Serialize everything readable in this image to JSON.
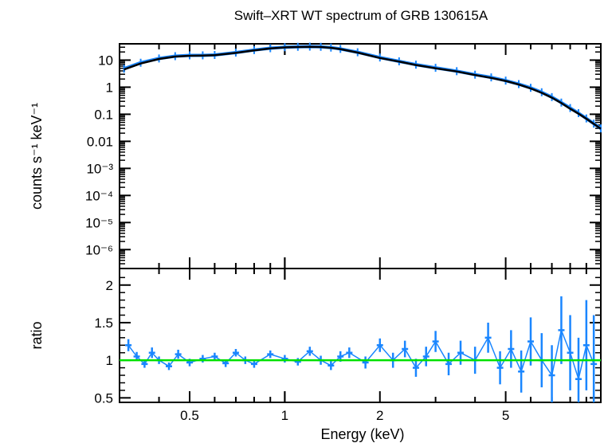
{
  "chart_data": [
    {
      "type": "scatter",
      "panel": "top",
      "title": "Swift–XRT WT spectrum of GRB 130615A",
      "ylabel": "counts s⁻¹ keV⁻¹",
      "xscale": "log",
      "yscale": "log",
      "xlim": [
        0.3,
        10
      ],
      "ylim": [
        2e-07,
        40
      ],
      "grid": false,
      "y_ticks": [
        {
          "value": 10,
          "label": "10"
        },
        {
          "value": 1,
          "label": "1"
        },
        {
          "value": 0.1,
          "label": "0.1"
        },
        {
          "value": 0.01,
          "label": "0.01"
        },
        {
          "value": 0.001,
          "label": "10⁻³"
        },
        {
          "value": 0.0001,
          "label": "10⁻⁴"
        },
        {
          "value": 1e-05,
          "label": "10⁻⁵"
        },
        {
          "value": 1e-06,
          "label": "10⁻⁶"
        }
      ],
      "series": [
        {
          "kind": "data",
          "color": "#1a86ff",
          "x": [
            0.31,
            0.35,
            0.4,
            0.45,
            0.5,
            0.55,
            0.6,
            0.7,
            0.8,
            0.9,
            1.0,
            1.1,
            1.2,
            1.3,
            1.4,
            1.5,
            1.7,
            2.0,
            2.3,
            2.6,
            3.0,
            3.5,
            4.0,
            4.5,
            5.0,
            5.5,
            6.0,
            6.5,
            7.0,
            7.5,
            8.0,
            8.5,
            9.0,
            9.5,
            10.0
          ],
          "y": [
            4.8,
            8.0,
            11.5,
            14.0,
            15.0,
            15.0,
            15.5,
            19.0,
            23.5,
            27.5,
            30.0,
            31.0,
            31.5,
            31.0,
            29.0,
            26.0,
            19.5,
            12.5,
            9.0,
            6.8,
            5.2,
            3.9,
            2.9,
            2.3,
            1.75,
            1.3,
            0.95,
            0.65,
            0.43,
            0.27,
            0.17,
            0.11,
            0.07,
            0.045,
            0.03
          ]
        },
        {
          "kind": "model",
          "color": "#000000",
          "x": [
            0.31,
            0.35,
            0.4,
            0.45,
            0.5,
            0.55,
            0.6,
            0.7,
            0.8,
            0.9,
            1.0,
            1.1,
            1.2,
            1.3,
            1.4,
            1.5,
            1.7,
            2.0,
            2.3,
            2.6,
            3.0,
            3.5,
            4.0,
            4.5,
            5.0,
            5.5,
            6.0,
            6.5,
            7.0,
            7.5,
            8.0,
            8.5,
            9.0,
            9.5,
            10.0
          ],
          "y": [
            4.5,
            7.5,
            11.0,
            13.5,
            14.5,
            14.8,
            15.2,
            18.5,
            23.0,
            27.0,
            29.5,
            30.5,
            31.0,
            30.5,
            28.5,
            25.5,
            19.0,
            12.0,
            8.8,
            6.6,
            5.0,
            3.8,
            2.8,
            2.2,
            1.7,
            1.25,
            0.9,
            0.62,
            0.41,
            0.26,
            0.16,
            0.105,
            0.068,
            0.044,
            0.029
          ]
        }
      ]
    },
    {
      "type": "scatter",
      "panel": "bottom",
      "xlabel": "Energy (keV)",
      "ylabel": "ratio",
      "xscale": "log",
      "xlim": [
        0.3,
        10
      ],
      "ylim": [
        0.44,
        2.22
      ],
      "grid": false,
      "x_ticks": [
        {
          "value": 0.5,
          "label": "0.5"
        },
        {
          "value": 1,
          "label": "1"
        },
        {
          "value": 2,
          "label": "2"
        },
        {
          "value": 5,
          "label": "5"
        }
      ],
      "y_ticks": [
        {
          "value": 2,
          "label": "2"
        },
        {
          "value": 1.5,
          "label": "1.5"
        },
        {
          "value": 1,
          "label": "1"
        },
        {
          "value": 0.5,
          "label": "0.5"
        }
      ],
      "reference_line": {
        "value": 1,
        "color": "#00e000"
      },
      "series": [
        {
          "kind": "data",
          "color": "#1a86ff",
          "x": [
            0.32,
            0.34,
            0.36,
            0.38,
            0.4,
            0.43,
            0.46,
            0.5,
            0.55,
            0.6,
            0.65,
            0.7,
            0.75,
            0.8,
            0.9,
            1.0,
            1.1,
            1.2,
            1.3,
            1.4,
            1.5,
            1.6,
            1.8,
            2.0,
            2.2,
            2.4,
            2.6,
            2.8,
            3.0,
            3.3,
            3.6,
            4.0,
            4.4,
            4.8,
            5.2,
            5.6,
            6.0,
            6.5,
            7.0,
            7.5,
            8.0,
            8.5,
            9.0,
            9.5
          ],
          "y": [
            1.2,
            1.05,
            0.95,
            1.1,
            1.0,
            0.92,
            1.08,
            0.97,
            1.02,
            1.05,
            0.96,
            1.1,
            1.0,
            0.95,
            1.08,
            1.02,
            0.98,
            1.12,
            1.0,
            0.93,
            1.05,
            1.1,
            0.97,
            1.2,
            1.0,
            1.15,
            0.9,
            1.05,
            1.25,
            0.95,
            1.1,
            1.0,
            1.3,
            0.9,
            1.15,
            0.85,
            1.25,
            1.0,
            0.8,
            1.4,
            1.1,
            0.75,
            1.2,
            0.95
          ],
          "yerr": [
            0.08,
            0.06,
            0.05,
            0.07,
            0.05,
            0.05,
            0.06,
            0.05,
            0.05,
            0.05,
            0.05,
            0.05,
            0.05,
            0.05,
            0.05,
            0.05,
            0.05,
            0.06,
            0.06,
            0.06,
            0.07,
            0.07,
            0.08,
            0.09,
            0.1,
            0.11,
            0.12,
            0.13,
            0.14,
            0.15,
            0.16,
            0.18,
            0.2,
            0.22,
            0.25,
            0.28,
            0.32,
            0.36,
            0.4,
            0.45,
            0.5,
            0.55,
            0.6,
            0.65
          ]
        }
      ]
    }
  ]
}
